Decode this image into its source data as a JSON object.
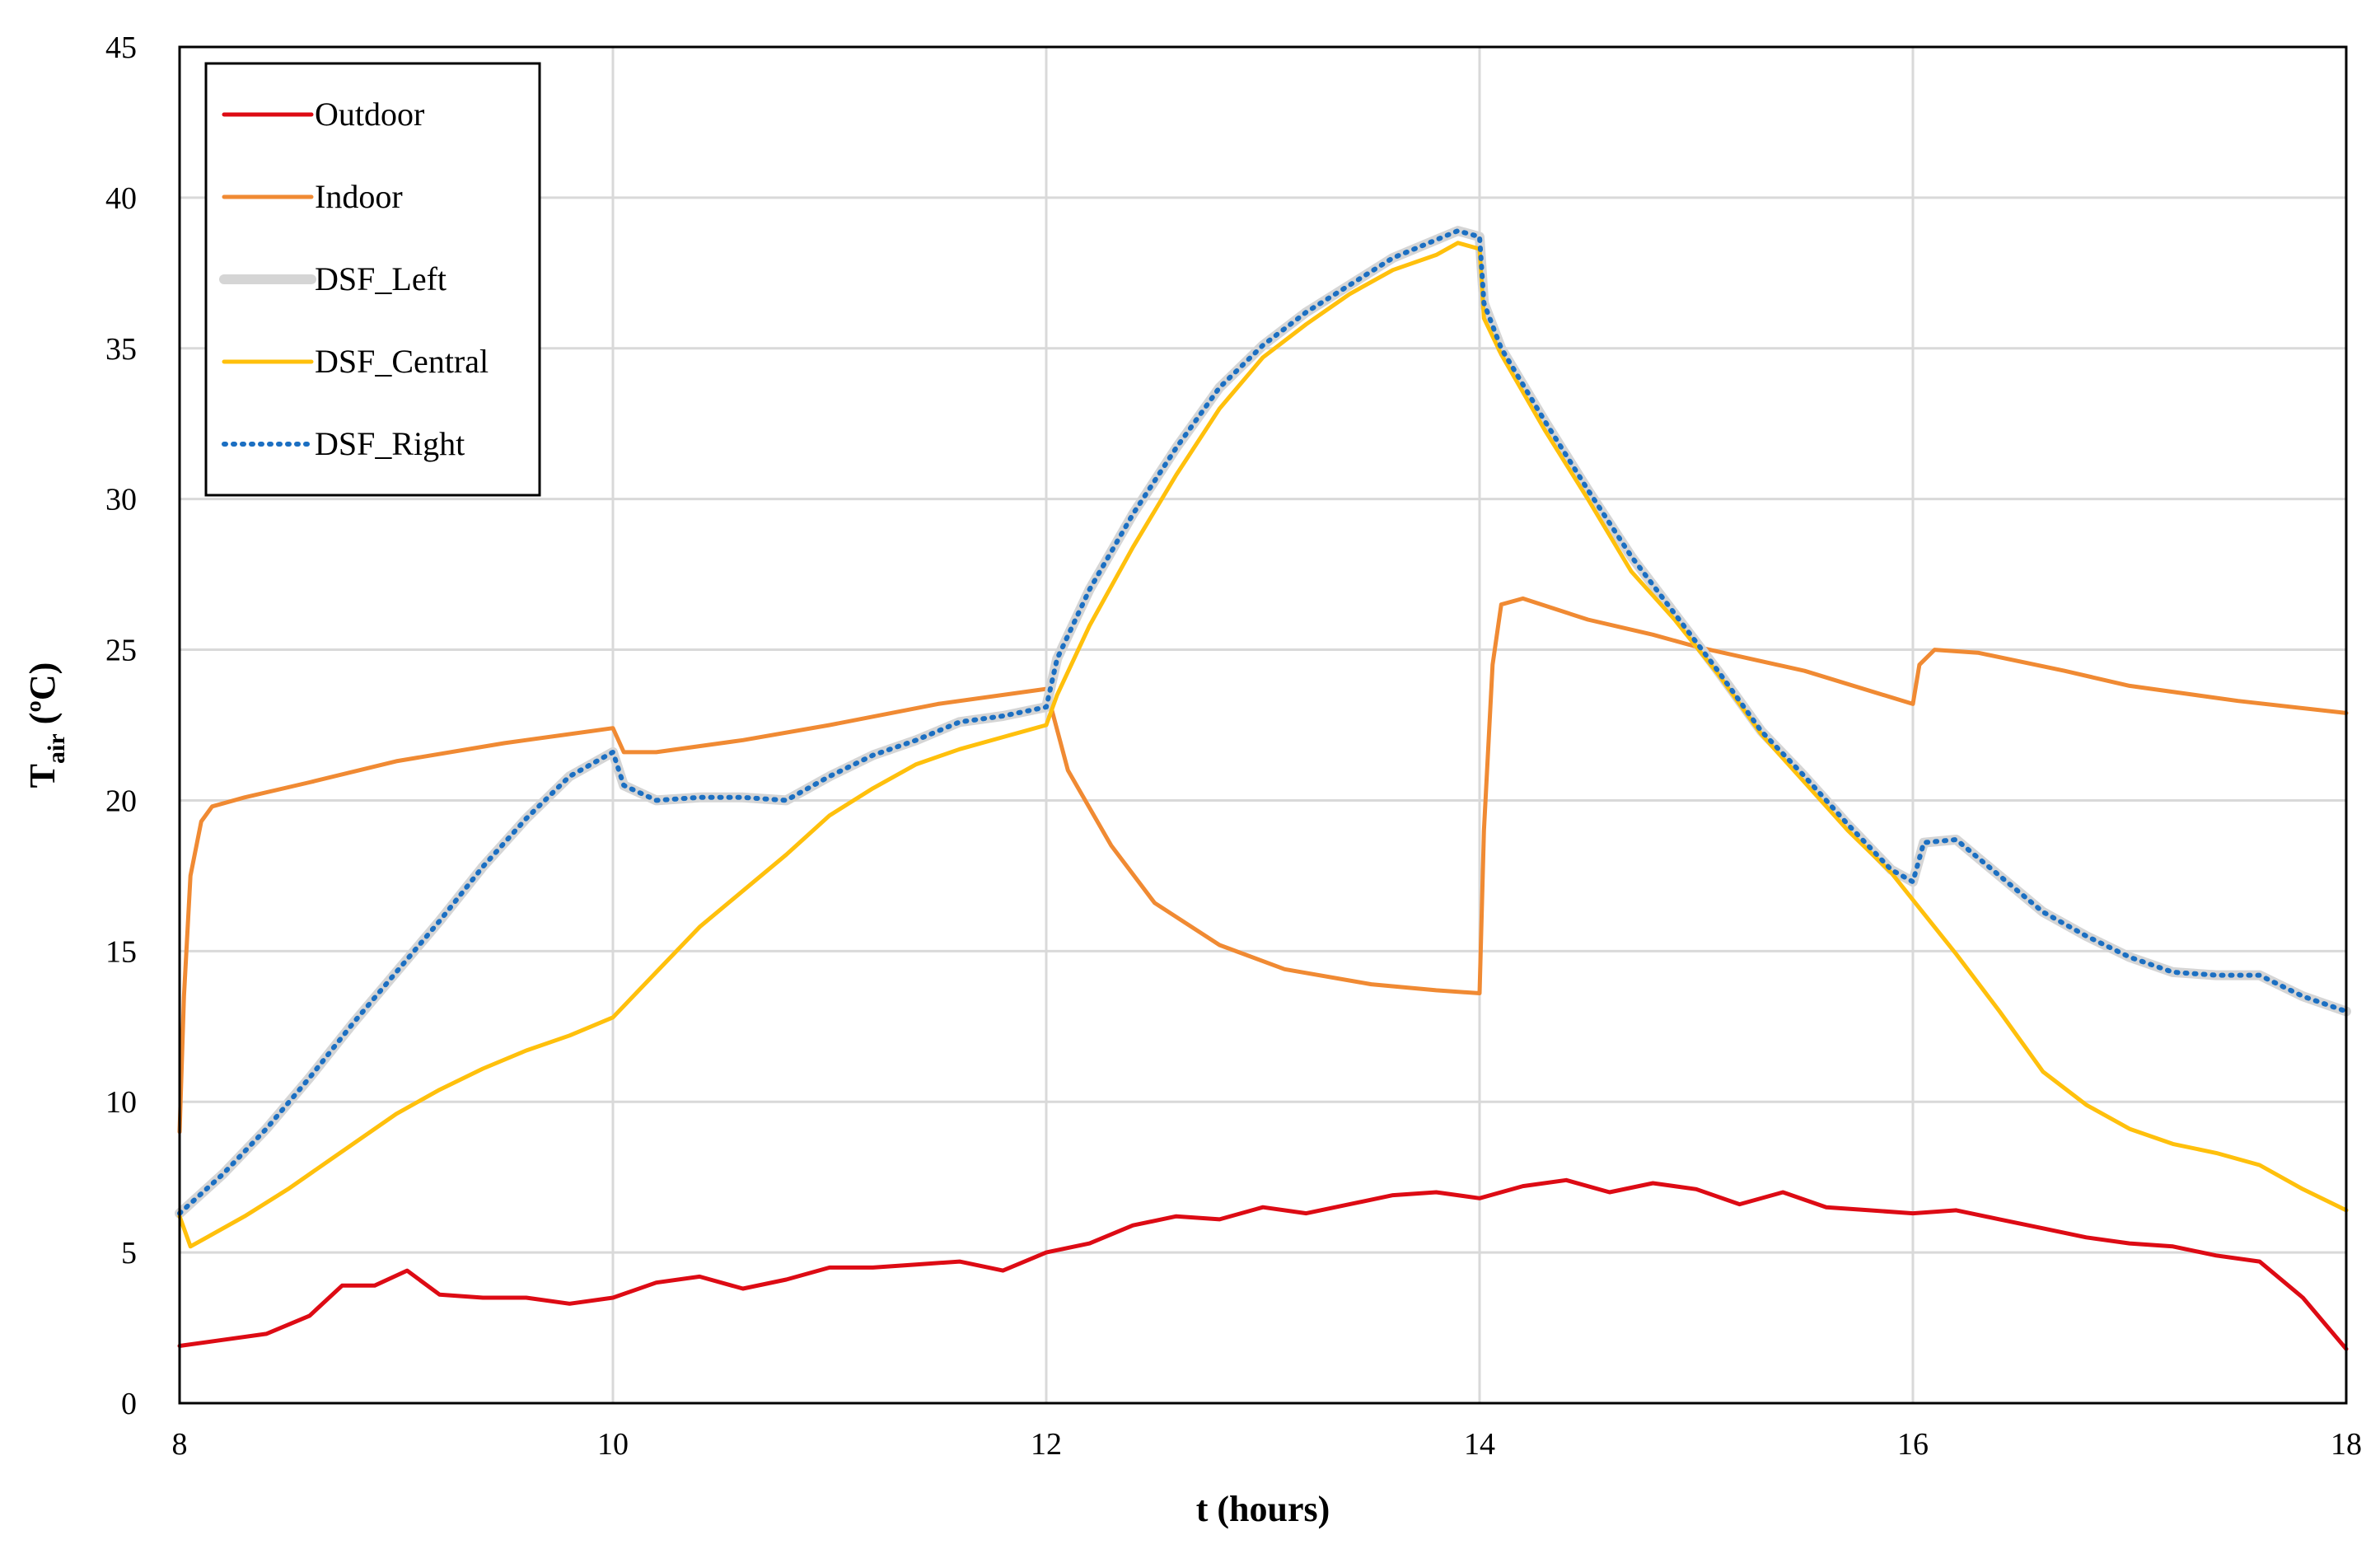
{
  "chart_data": {
    "type": "line",
    "title": "",
    "xlabel": "t (hours)",
    "ylabel_main": "T",
    "ylabel_sub": "air",
    "ylabel_unit": " (ºC)",
    "xlim": [
      8,
      18
    ],
    "ylim": [
      0,
      45
    ],
    "xticks": [
      8,
      10,
      12,
      14,
      16,
      18
    ],
    "yticks": [
      0,
      5,
      10,
      15,
      20,
      25,
      30,
      35,
      40,
      45
    ],
    "grid": true,
    "legend": "top-left",
    "series": [
      {
        "name": "Outdoor",
        "color": "#dd0b14",
        "style": "solid",
        "x": [
          8,
          8.2,
          8.4,
          8.6,
          8.75,
          8.9,
          9.05,
          9.2,
          9.4,
          9.6,
          9.8,
          10,
          10.2,
          10.4,
          10.6,
          10.8,
          11,
          11.2,
          11.4,
          11.6,
          11.8,
          12,
          12.2,
          12.4,
          12.6,
          12.8,
          13,
          13.2,
          13.4,
          13.6,
          13.8,
          14,
          14.2,
          14.4,
          14.6,
          14.8,
          15,
          15.2,
          15.4,
          15.6,
          15.8,
          16,
          16.2,
          16.4,
          16.6,
          16.8,
          17,
          17.2,
          17.4,
          17.6,
          17.8,
          18
        ],
        "y": [
          1.9,
          2.1,
          2.3,
          2.9,
          3.9,
          3.9,
          4.4,
          3.6,
          3.5,
          3.5,
          3.3,
          3.5,
          4.0,
          4.2,
          3.8,
          4.1,
          4.5,
          4.5,
          4.6,
          4.7,
          4.4,
          5.0,
          5.3,
          5.9,
          6.2,
          6.1,
          6.5,
          6.3,
          6.6,
          6.9,
          7.0,
          6.8,
          7.2,
          7.4,
          7.0,
          7.3,
          7.1,
          6.6,
          7.0,
          6.5,
          6.4,
          6.3,
          6.4,
          6.1,
          5.8,
          5.5,
          5.3,
          5.2,
          4.9,
          4.7,
          3.5,
          1.8
        ]
      },
      {
        "name": "Indoor",
        "color": "#f08a33",
        "style": "solid",
        "x": [
          8,
          8.02,
          8.05,
          8.1,
          8.15,
          8.3,
          8.6,
          9,
          9.5,
          10,
          10.05,
          10.2,
          10.6,
          11,
          11.5,
          12,
          12.1,
          12.3,
          12.5,
          12.8,
          13.1,
          13.5,
          13.8,
          14,
          14.02,
          14.06,
          14.1,
          14.2,
          14.5,
          14.8,
          15,
          15.5,
          16,
          16.03,
          16.1,
          16.3,
          16.7,
          17,
          17.5,
          18
        ],
        "y": [
          9.0,
          13.5,
          17.5,
          19.3,
          19.8,
          20.1,
          20.6,
          21.3,
          21.9,
          22.4,
          21.6,
          21.6,
          22.0,
          22.5,
          23.2,
          23.7,
          21.0,
          18.5,
          16.6,
          15.2,
          14.4,
          13.9,
          13.7,
          13.6,
          19.0,
          24.5,
          26.5,
          26.7,
          26.0,
          25.5,
          25.1,
          24.3,
          23.2,
          24.5,
          25.0,
          24.9,
          24.3,
          23.8,
          23.3,
          22.9
        ]
      },
      {
        "name": "DSF_Left",
        "color": "#d5d5d5",
        "style": "solid",
        "x": [
          8,
          8.2,
          8.4,
          8.6,
          8.8,
          9,
          9.2,
          9.4,
          9.6,
          9.8,
          10,
          10.05,
          10.2,
          10.4,
          10.6,
          10.8,
          11,
          11.2,
          11.4,
          11.6,
          11.8,
          12,
          12.05,
          12.2,
          12.4,
          12.6,
          12.8,
          13,
          13.2,
          13.4,
          13.6,
          13.8,
          13.9,
          14,
          14.02,
          14.1,
          14.3,
          14.5,
          14.7,
          14.9,
          15.1,
          15.3,
          15.5,
          15.7,
          15.9,
          16,
          16.05,
          16.2,
          16.4,
          16.6,
          16.8,
          17,
          17.2,
          17.4,
          17.6,
          17.8,
          18
        ],
        "y": [
          6.3,
          7.6,
          9.1,
          10.8,
          12.6,
          14.3,
          16.0,
          17.8,
          19.4,
          20.8,
          21.6,
          20.5,
          20.0,
          20.1,
          20.1,
          20.0,
          20.8,
          21.5,
          22.0,
          22.6,
          22.8,
          23.1,
          24.7,
          27.0,
          29.5,
          31.7,
          33.7,
          35.1,
          36.2,
          37.1,
          38.0,
          38.6,
          38.9,
          38.7,
          36.5,
          35.0,
          32.6,
          30.3,
          28.1,
          26.2,
          24.3,
          22.3,
          20.8,
          19.2,
          17.7,
          17.3,
          18.6,
          18.7,
          17.5,
          16.3,
          15.5,
          14.8,
          14.3,
          14.2,
          14.2,
          13.5,
          13.0
        ]
      },
      {
        "name": "DSF_Central",
        "color": "#ffc00c",
        "style": "solid",
        "x": [
          8,
          8.05,
          8.15,
          8.3,
          8.5,
          8.7,
          9,
          9.2,
          9.4,
          9.6,
          9.8,
          10,
          10.2,
          10.4,
          10.6,
          10.8,
          11,
          11.2,
          11.4,
          11.6,
          11.8,
          12,
          12.05,
          12.2,
          12.4,
          12.6,
          12.8,
          13,
          13.2,
          13.4,
          13.6,
          13.8,
          13.9,
          14,
          14.02,
          14.1,
          14.3,
          14.5,
          14.7,
          14.9,
          15.1,
          15.3,
          15.5,
          15.7,
          15.9,
          16,
          16.2,
          16.4,
          16.6,
          16.8,
          17,
          17.2,
          17.4,
          17.6,
          17.8,
          18
        ],
        "y": [
          6.2,
          5.2,
          5.6,
          6.2,
          7.1,
          8.1,
          9.6,
          10.4,
          11.1,
          11.7,
          12.2,
          12.8,
          14.3,
          15.8,
          17.0,
          18.2,
          19.5,
          20.4,
          21.2,
          21.7,
          22.1,
          22.5,
          23.5,
          25.8,
          28.4,
          30.8,
          33.0,
          34.7,
          35.8,
          36.8,
          37.6,
          38.1,
          38.5,
          38.3,
          36.0,
          34.8,
          32.3,
          30.0,
          27.6,
          26.0,
          24.2,
          22.2,
          20.6,
          19.0,
          17.6,
          16.7,
          14.9,
          13.0,
          11.0,
          9.9,
          9.1,
          8.6,
          8.3,
          7.9,
          7.1,
          6.4
        ]
      },
      {
        "name": "DSF_Right",
        "color": "#1b6fc2",
        "style": "dotted",
        "x": [
          8,
          8.2,
          8.4,
          8.6,
          8.8,
          9,
          9.2,
          9.4,
          9.6,
          9.8,
          10,
          10.05,
          10.2,
          10.4,
          10.6,
          10.8,
          11,
          11.2,
          11.4,
          11.6,
          11.8,
          12,
          12.05,
          12.2,
          12.4,
          12.6,
          12.8,
          13,
          13.2,
          13.4,
          13.6,
          13.8,
          13.9,
          14,
          14.02,
          14.1,
          14.3,
          14.5,
          14.7,
          14.9,
          15.1,
          15.3,
          15.5,
          15.7,
          15.9,
          16,
          16.05,
          16.2,
          16.4,
          16.6,
          16.8,
          17,
          17.2,
          17.4,
          17.6,
          17.8,
          18
        ],
        "y": [
          6.3,
          7.6,
          9.1,
          10.8,
          12.6,
          14.3,
          16.0,
          17.8,
          19.4,
          20.8,
          21.6,
          20.5,
          20.0,
          20.1,
          20.1,
          20.0,
          20.8,
          21.5,
          22.0,
          22.6,
          22.8,
          23.1,
          24.7,
          27.0,
          29.5,
          31.7,
          33.7,
          35.1,
          36.2,
          37.1,
          38.0,
          38.6,
          38.9,
          38.7,
          36.5,
          35.0,
          32.6,
          30.3,
          28.1,
          26.2,
          24.3,
          22.3,
          20.8,
          19.2,
          17.7,
          17.3,
          18.6,
          18.7,
          17.5,
          16.3,
          15.5,
          14.8,
          14.3,
          14.2,
          14.2,
          13.5,
          13.0
        ]
      }
    ]
  }
}
